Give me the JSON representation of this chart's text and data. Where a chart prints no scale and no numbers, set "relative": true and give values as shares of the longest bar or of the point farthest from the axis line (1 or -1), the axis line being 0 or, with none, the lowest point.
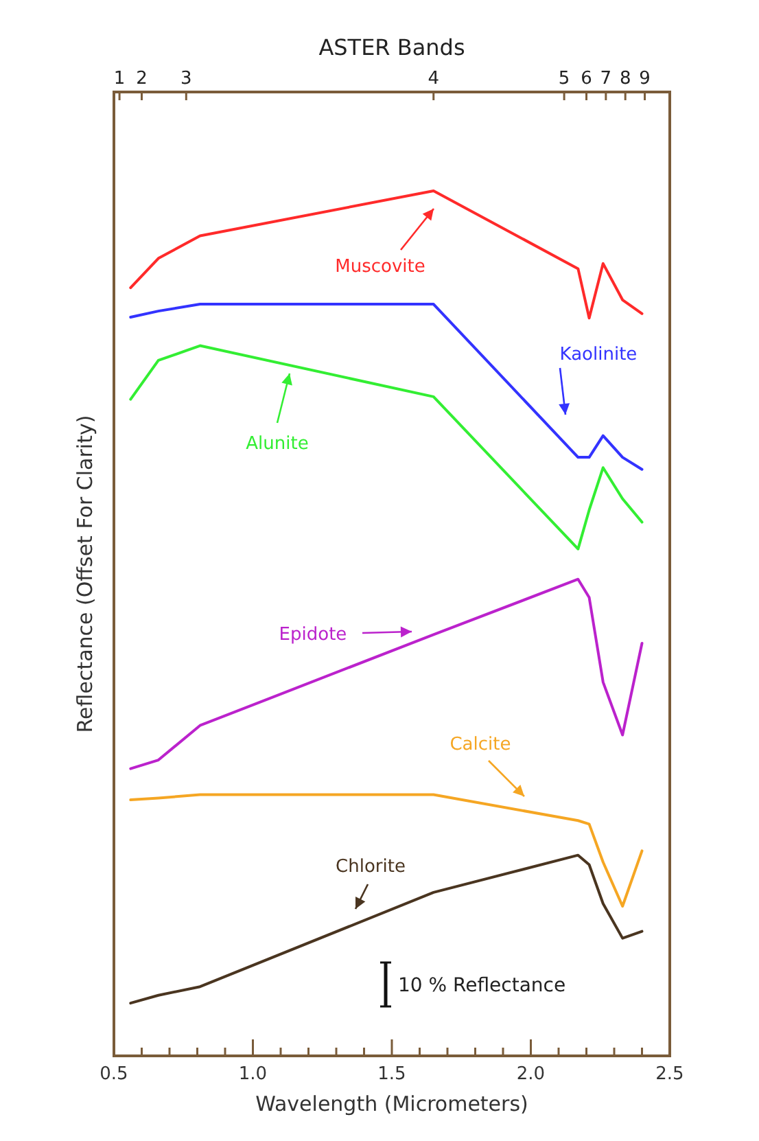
{
  "chart_data": {
    "type": "line",
    "relative": true,
    "x2label": "ASTER Bands",
    "xlabel": "Wavelength (Micrometers)",
    "ylabel": "Reflectance (Offset For Clarity)",
    "annotations": [
      "10 % Reflectance",
      "1",
      "2",
      "3",
      "4",
      "5",
      "6",
      "7",
      "8",
      "9"
    ],
    "x": [
      0.56,
      0.66,
      0.81,
      1.65,
      2.17,
      2.21,
      2.26,
      2.33,
      2.4
    ],
    "series": [
      {
        "name": "Muscovite",
        "color": "#ff2a2a",
        "values": [
          0.888,
          0.922,
          0.948,
          1.0,
          0.91,
          0.853,
          0.916,
          0.874,
          0.858
        ]
      },
      {
        "name": "Kaolinite",
        "color": "#3333ff",
        "values": [
          0.854,
          0.861,
          0.869,
          0.869,
          0.692,
          0.692,
          0.717,
          0.692,
          0.678
        ]
      },
      {
        "name": "Alunite",
        "color": "#33ee33",
        "values": [
          0.759,
          0.804,
          0.821,
          0.762,
          0.586,
          0.631,
          0.68,
          0.644,
          0.617
        ]
      },
      {
        "name": "Epidote",
        "color": "#bb22cc",
        "values": [
          0.332,
          0.342,
          0.382,
          0.487,
          0.551,
          0.53,
          0.432,
          0.371,
          0.477
        ]
      },
      {
        "name": "Calcite",
        "color": "#f5a623",
        "values": [
          0.296,
          0.298,
          0.302,
          0.302,
          0.272,
          0.268,
          0.224,
          0.173,
          0.237
        ]
      },
      {
        "name": "Chlorite",
        "color": "#4a3520",
        "values": [
          0.061,
          0.07,
          0.08,
          0.189,
          0.232,
          0.221,
          0.176,
          0.136,
          0.144
        ]
      }
    ],
    "xlim": [
      0.5,
      2.5
    ],
    "xticks": [
      {
        "value": 0.5,
        "label": "0.5"
      },
      {
        "value": 0.6,
        "label": null
      },
      {
        "value": 0.7,
        "label": null
      },
      {
        "value": 0.8,
        "label": null
      },
      {
        "value": 0.9,
        "label": null
      },
      {
        "value": 1.0,
        "label": "1.0"
      },
      {
        "value": 1.1,
        "label": null
      },
      {
        "value": 1.2,
        "label": null
      },
      {
        "value": 1.3,
        "label": null
      },
      {
        "value": 1.4,
        "label": null
      },
      {
        "value": 1.5,
        "label": "1.5"
      },
      {
        "value": 1.6,
        "label": null
      },
      {
        "value": 1.7,
        "label": null
      },
      {
        "value": 1.8,
        "label": null
      },
      {
        "value": 1.9,
        "label": null
      },
      {
        "value": 2.0,
        "label": "2.0"
      },
      {
        "value": 2.1,
        "label": null
      },
      {
        "value": 2.2,
        "label": null
      },
      {
        "value": 2.3,
        "label": null
      },
      {
        "value": 2.4,
        "label": null
      },
      {
        "value": 2.5,
        "label": "2.5"
      }
    ],
    "line_style": "solid"
  }
}
